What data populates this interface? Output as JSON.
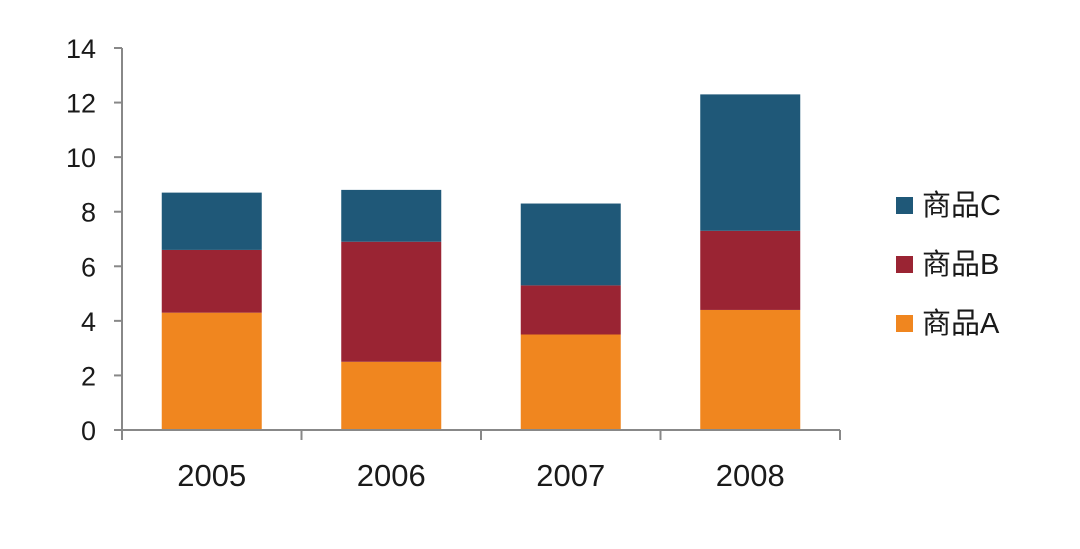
{
  "chart_data": {
    "type": "bar",
    "stacked": true,
    "categories": [
      "2005",
      "2006",
      "2007",
      "2008"
    ],
    "series": [
      {
        "name": "商品A",
        "values": [
          4.3,
          2.5,
          3.5,
          4.4
        ],
        "color": "#F0861F"
      },
      {
        "name": "商品B",
        "values": [
          2.3,
          4.4,
          1.8,
          2.9
        ],
        "color": "#9A2433"
      },
      {
        "name": "商品C",
        "values": [
          2.1,
          1.9,
          3.0,
          5.0
        ],
        "color": "#1F5878"
      }
    ],
    "ylim": [
      0,
      14
    ],
    "yticks": [
      "0",
      "2",
      "4",
      "6",
      "8",
      "10",
      "12",
      "14"
    ],
    "title": "",
    "xlabel": "",
    "ylabel": "",
    "grid": false,
    "legend": {
      "position": "right",
      "order": [
        "商品C",
        "商品B",
        "商品A"
      ]
    },
    "colors": {
      "axis": "#888888",
      "text": "#1a1a1a"
    }
  }
}
